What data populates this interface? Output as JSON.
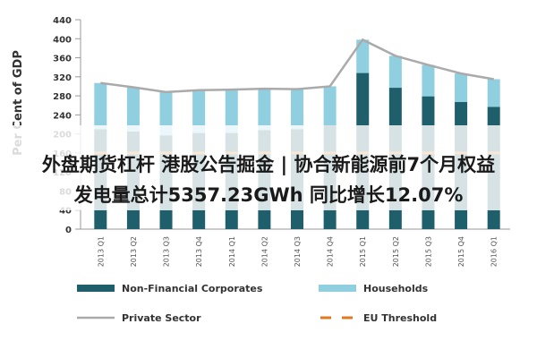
{
  "overlay": {
    "line1": "外盘期货杠杆 港股公告掘金 | 协合新能源前7个月权益",
    "line2": "发电量总计5357.23GWh 同比增长12.07%"
  },
  "chart_data": {
    "type": "bar",
    "stacked": true,
    "ylabel": "Per Cent of GDP",
    "xlabel": "",
    "ylim": [
      0,
      440
    ],
    "yticks": [
      0,
      40,
      80,
      120,
      160,
      200,
      240,
      280,
      320,
      360,
      400,
      440
    ],
    "grid": false,
    "legend_position": "bottom",
    "categories": [
      "2013 Q1",
      "2013 Q2",
      "2013 Q3",
      "2013 Q4",
      "2014 Q1",
      "2014 Q2",
      "2014 Q3",
      "2014 Q4",
      "2015 Q1",
      "2015 Q2",
      "2015 Q3",
      "2015 Q4",
      "2016 Q1"
    ],
    "series": [
      {
        "name": "Non-Financial Corporates",
        "kind": "bar",
        "color": "#1f5f6b",
        "values": [
          210,
          205,
          197,
          202,
          202,
          208,
          210,
          218,
          328,
          297,
          279,
          267,
          257
        ]
      },
      {
        "name": "Households",
        "kind": "bar",
        "color": "#8fcfe0",
        "values": [
          97,
          93,
          91,
          90,
          91,
          87,
          84,
          82,
          70,
          67,
          66,
          60,
          58
        ]
      },
      {
        "name": "Private Sector",
        "kind": "line",
        "color": "#aaaaaa",
        "values": [
          307,
          298,
          288,
          292,
          293,
          295,
          294,
          300,
          398,
          364,
          345,
          327,
          315
        ]
      },
      {
        "name": "EU Threshold",
        "kind": "dash",
        "color": "#e07a20",
        "values": [
          160,
          160,
          160,
          160,
          160,
          160,
          160,
          160,
          160,
          160,
          160,
          160,
          160
        ]
      }
    ]
  }
}
